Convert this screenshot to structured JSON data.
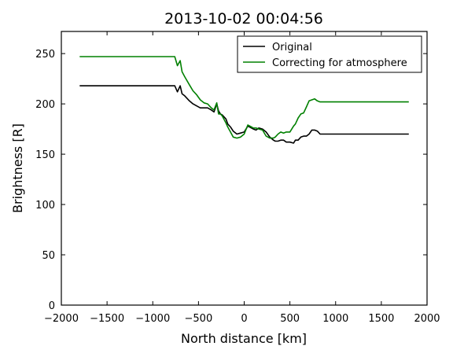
{
  "chart_data": {
    "type": "line",
    "title": "2013-10-02 00:04:56",
    "xlabel": "North distance [km]",
    "ylabel": "Brightness [R]",
    "xlim": [
      -2000,
      2000
    ],
    "ylim": [
      0,
      272
    ],
    "xticks": [
      -2000,
      -1500,
      -1000,
      -500,
      0,
      500,
      1000,
      1500,
      2000
    ],
    "yticks": [
      0,
      50,
      100,
      150,
      200,
      250
    ],
    "xtick_labels": [
      "−2000",
      "−1500",
      "−1000",
      "−500",
      "0",
      "500",
      "1000",
      "1500",
      "2000"
    ],
    "ytick_labels": [
      "0",
      "50",
      "100",
      "150",
      "200",
      "250"
    ],
    "grid": false,
    "legend_position": "top-right",
    "series": [
      {
        "name": "Original",
        "color": "#000000",
        "x": [
          -1800,
          -760,
          -730,
          -700,
          -680,
          -650,
          -600,
          -560,
          -520,
          -480,
          -440,
          -400,
          -360,
          -330,
          -300,
          -280,
          -260,
          -240,
          -200,
          -180,
          -150,
          -120,
          -80,
          -40,
          0,
          40,
          80,
          100,
          130,
          160,
          200,
          240,
          280,
          320,
          340,
          370,
          400,
          430,
          460,
          500,
          540,
          560,
          590,
          620,
          650,
          680,
          710,
          740,
          770,
          800,
          830,
          860,
          900,
          940,
          970,
          1000,
          1800
        ],
        "y": [
          218,
          218,
          212,
          218,
          210,
          208,
          203,
          200,
          198,
          196,
          196,
          196,
          194,
          192,
          200,
          193,
          190,
          189,
          185,
          180,
          177,
          173,
          170,
          171,
          172,
          178,
          176,
          175,
          174,
          176,
          175,
          172,
          167,
          164,
          163,
          163,
          164,
          164,
          162,
          162,
          161,
          164,
          164,
          167,
          168,
          168,
          170,
          174,
          174,
          173,
          170,
          170,
          170,
          170,
          170,
          170,
          170
        ]
      },
      {
        "name": "Correcting for atmosphere",
        "color": "#008000",
        "x": [
          -1800,
          -760,
          -730,
          -700,
          -680,
          -650,
          -600,
          -560,
          -520,
          -480,
          -440,
          -400,
          -360,
          -330,
          -300,
          -280,
          -260,
          -240,
          -200,
          -180,
          -150,
          -120,
          -80,
          -40,
          0,
          40,
          80,
          100,
          130,
          160,
          200,
          240,
          280,
          320,
          340,
          370,
          400,
          430,
          460,
          500,
          540,
          560,
          590,
          620,
          650,
          680,
          710,
          740,
          770,
          800,
          830,
          860,
          900,
          940,
          970,
          1000,
          1800
        ],
        "y": [
          247,
          247,
          238,
          243,
          232,
          227,
          219,
          213,
          209,
          204,
          201,
          200,
          196,
          194,
          201,
          190,
          190,
          188,
          181,
          177,
          172,
          167,
          166,
          167,
          170,
          179,
          177,
          176,
          176,
          175,
          174,
          168,
          166,
          166,
          167,
          170,
          172,
          171,
          172,
          172,
          178,
          180,
          186,
          190,
          191,
          197,
          203,
          204,
          205,
          203,
          202,
          202,
          202,
          202,
          202,
          202,
          202
        ]
      }
    ]
  }
}
